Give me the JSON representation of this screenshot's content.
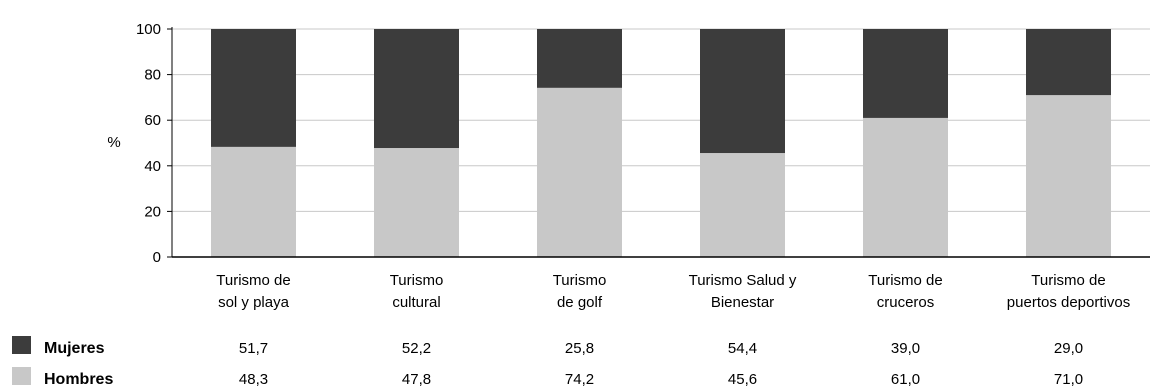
{
  "chart_data": {
    "type": "bar",
    "stacked": true,
    "ylabel": "%",
    "ylim": [
      0,
      100
    ],
    "yticks": [
      "0",
      "20",
      "40",
      "60",
      "80",
      "100"
    ],
    "grid": true,
    "categories": [
      [
        "Turismo de",
        "sol y playa"
      ],
      [
        "Turismo",
        "cultural"
      ],
      [
        "Turismo",
        "de golf"
      ],
      [
        "Turismo Salud y",
        "Bienestar"
      ],
      [
        "Turismo de",
        "cruceros"
      ],
      [
        "Turismo de",
        "puertos deportivos"
      ]
    ],
    "series": [
      {
        "name": "Hombres",
        "color": "#c8c8c8",
        "values": [
          48.3,
          47.8,
          74.2,
          45.6,
          61.0,
          71.0
        ],
        "labels": [
          "48,3",
          "47,8",
          "74,2",
          "45,6",
          "61,0",
          "71,0"
        ]
      },
      {
        "name": "Mujeres",
        "color": "#3c3c3c",
        "values": [
          51.7,
          52.2,
          25.8,
          54.4,
          39.0,
          29.0
        ],
        "labels": [
          "51,7",
          "52,2",
          "25,8",
          "54,4",
          "39,0",
          "29,0"
        ]
      }
    ],
    "legend": "data-table-bottom-left"
  }
}
